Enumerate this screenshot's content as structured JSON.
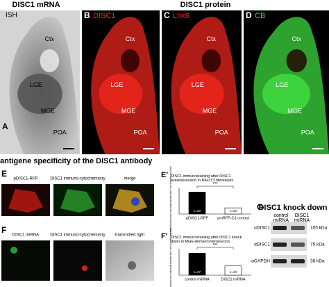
{
  "headers": {
    "mrna": "DISC1 mRNA",
    "protein": "DISC1 protein",
    "antigene": "antigene specificity of the DISC1 antibody",
    "knockdown": "DISC1 knock down"
  },
  "panels_top": [
    {
      "letter": "A",
      "stain": "ISH",
      "color": "#ffffff",
      "regions": [
        "Ctx",
        "LGE",
        "MGE",
        "POA"
      ]
    },
    {
      "letter": "B",
      "stain": "DISC1",
      "color": "#e8261c",
      "regions": [
        "Ctx",
        "LGE",
        "MGE",
        "POA"
      ]
    },
    {
      "letter": "C",
      "stain": "Lhx6",
      "color": "#e8261c",
      "regions": [
        "Ctx",
        "LGE",
        "MGE",
        "POA"
      ]
    },
    {
      "letter": "D",
      "stain": "CB",
      "color": "#3ed83e",
      "regions": [
        "Ctx",
        "LGE",
        "MGE",
        "POA"
      ]
    }
  ],
  "panel_e": {
    "letter": "E",
    "captions": [
      "pDISC1-RFP",
      "DISC1 immuno-cytochemistry",
      "merge"
    ]
  },
  "panel_f": {
    "letter": "F",
    "captions": [
      "DISC1 miRNA",
      "DISC1 immuno-cytochemistry",
      "transmitted light"
    ]
  },
  "charts": [
    {
      "type": "bar",
      "letter": "E′",
      "title": "DISC1 immunostaining after DISC1 overexpression in NIH3T3 fibroblasts",
      "y_label": "relative fluorescence intensity transfected / non transfected cells",
      "significance": "***",
      "categories": [
        "pDISC1-RFP",
        "pmRFP-C1 control"
      ],
      "n_labels": [
        "n=20",
        "n=20"
      ],
      "values": [
        1.0,
        0.28
      ],
      "colors": [
        "#000000",
        "#ffffff"
      ],
      "ylim": [
        0,
        1.2
      ]
    },
    {
      "type": "bar",
      "letter": "F′",
      "title": "DISC1 immunostaining after DISC1 knock down in MGE-derived interneurons",
      "y_label": "relative fluorescence intensity transfected / non transfected cells",
      "significance": "***",
      "categories": [
        "control miRNA",
        "DISC1 miRNA"
      ],
      "n_labels": [
        "n=27",
        "n=23"
      ],
      "values": [
        1.0,
        0.42
      ],
      "colors": [
        "#000000",
        "#ffffff"
      ],
      "ylim": [
        0,
        1.2
      ]
    }
  ],
  "blot": {
    "letter": "G",
    "lanes": [
      "control miRNA",
      "DISC1 miRNA"
    ],
    "rows": [
      {
        "antibody": "αDISC1",
        "size": "105 kDa"
      },
      {
        "antibody": "αDISC1",
        "size": "75 kDa"
      },
      {
        "antibody": "αGAPDH",
        "size": "38 kDa"
      }
    ]
  }
}
